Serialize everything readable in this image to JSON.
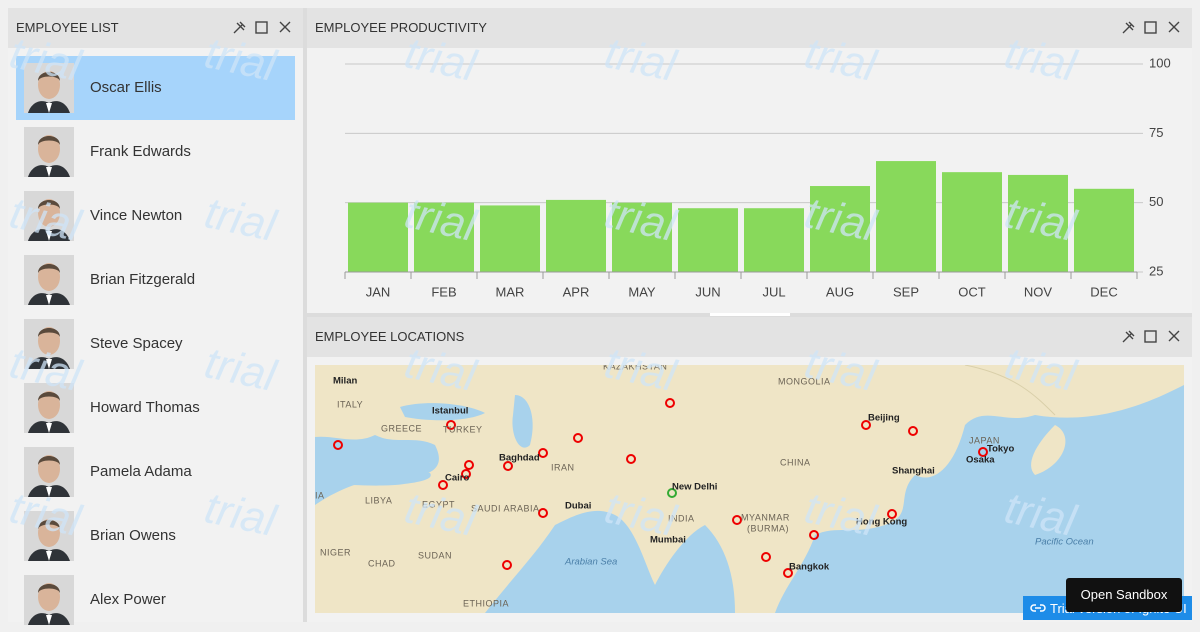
{
  "employee_list": {
    "title": "EMPLOYEE LIST",
    "employees": [
      "Oscar Ellis",
      "Frank Edwards",
      "Vince Newton",
      "Brian Fitzgerald",
      "Steve Spacey",
      "Howard Thomas",
      "Pamela Adama",
      "Brian Owens",
      "Alex Power"
    ]
  },
  "chart_data": {
    "type": "bar",
    "title": "EMPLOYEE PRODUCTIVITY",
    "categories": [
      "JAN",
      "FEB",
      "MAR",
      "APR",
      "MAY",
      "JUN",
      "JUL",
      "AUG",
      "SEP",
      "OCT",
      "NOV",
      "DEC"
    ],
    "values": [
      50,
      50,
      49,
      51,
      50,
      48,
      48,
      56,
      65,
      61,
      60,
      55
    ],
    "color": "#88d95b",
    "ylim": [
      25,
      100
    ],
    "yticks": [
      25,
      50,
      75,
      100
    ],
    "grid": true
  },
  "locations": {
    "title": "EMPLOYEE LOCATIONS",
    "labels": [
      "Milan",
      "ITALY",
      "Istanbul",
      "TURKEY",
      "GREECE",
      "KAZAKHSTAN",
      "MONGOLIA",
      "Beijing",
      "JAPAN",
      "Tokyo",
      "Osaka",
      "CHINA",
      "Shanghai",
      "Baghdad",
      "IRAN",
      "Cairo",
      "EGYPT",
      "LIBYA",
      "IA",
      "New Delhi",
      "INDIA",
      "Dubai",
      "SAUDI ARABIA",
      "MYANMAR",
      "(BURMA)",
      "Hong Kong",
      "Mumbai",
      "Bangkok",
      "NIGER",
      "CHAD",
      "SUDAN",
      "Arabian Sea",
      "Pacific Ocean",
      "ETHIOPIA"
    ]
  },
  "watermark": "trial",
  "sandbox_button": "Open Sandbox",
  "trial_notice": "Trial version of Ignite UI"
}
